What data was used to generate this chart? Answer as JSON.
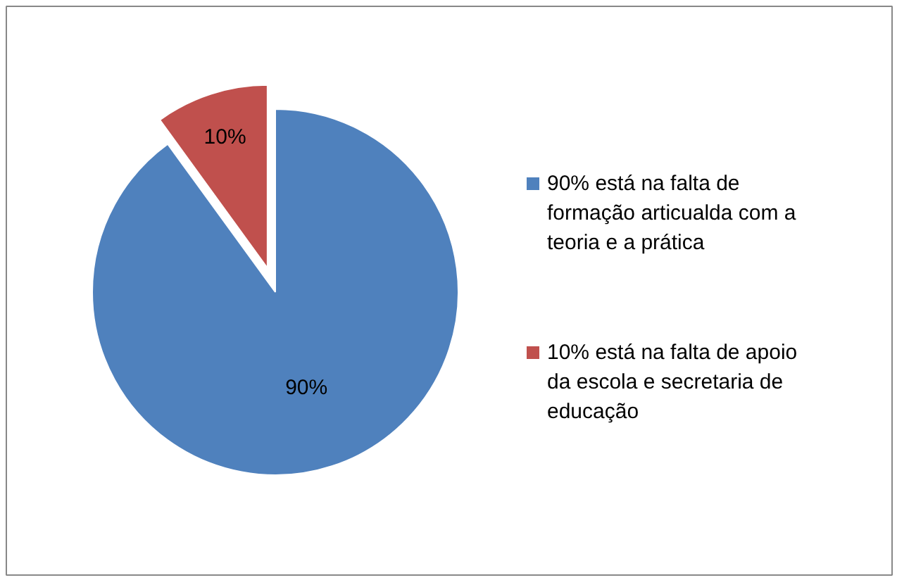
{
  "chart_data": {
    "type": "pie",
    "categories": [
      "90% está na falta de formação articualda com a teoria e a prática",
      "10% está na falta de apoio da escola e secretaria de educação"
    ],
    "values": [
      90,
      10
    ],
    "colors": [
      "#4f81bd",
      "#c0504d"
    ],
    "value_labels": [
      "90%",
      "10%"
    ],
    "legend": "right"
  }
}
